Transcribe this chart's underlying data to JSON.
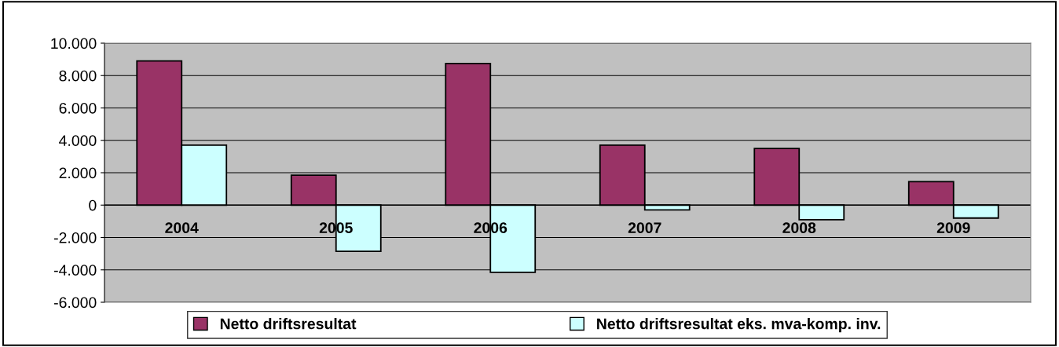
{
  "chart_data": {
    "type": "bar",
    "categories": [
      "2004",
      "2005",
      "2006",
      "2007",
      "2008",
      "2009"
    ],
    "series": [
      {
        "name": "Netto driftsresultat",
        "color": "#993366",
        "values": [
          8900,
          1850,
          8750,
          3700,
          3500,
          1450
        ]
      },
      {
        "name": "Netto driftsresultat eks. mva-komp. inv.",
        "color": "#ccffff",
        "values": [
          3700,
          -2850,
          -4150,
          -300,
          -900,
          -800
        ]
      }
    ],
    "ylim": [
      -6000,
      10000
    ],
    "yticks": [
      {
        "value": -6000,
        "label": "-6.000"
      },
      {
        "value": -4000,
        "label": "-4.000"
      },
      {
        "value": -2000,
        "label": "-2.000"
      },
      0,
      {
        "value": 2000,
        "label": "2.000"
      },
      {
        "value": 4000,
        "label": "4.000"
      },
      {
        "value": 6000,
        "label": "6.000"
      },
      {
        "value": 8000,
        "label": "8.000"
      },
      {
        "value": 10000,
        "label": "10.000"
      }
    ],
    "grid": "y",
    "legend": "bottom"
  }
}
